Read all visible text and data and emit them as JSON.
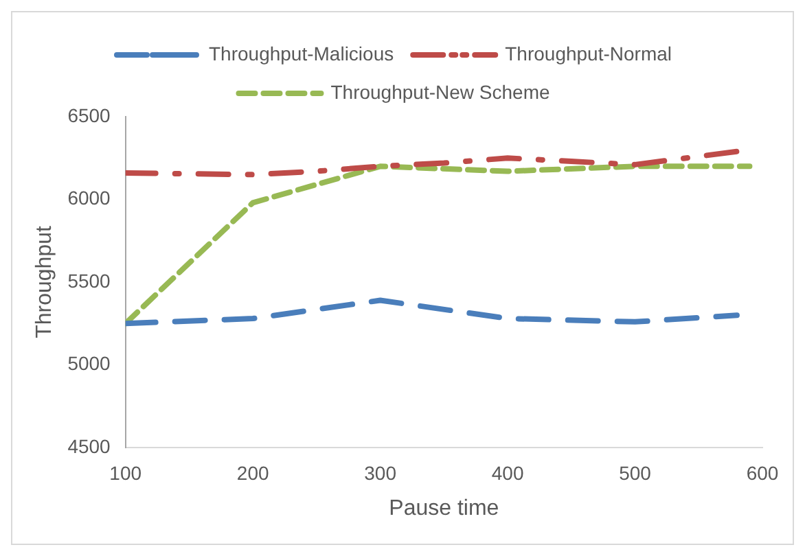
{
  "chart_data": {
    "type": "line",
    "xlabel": "Pause time",
    "ylabel": "Throughput",
    "xlim": [
      100,
      600
    ],
    "xticks": [
      100,
      200,
      300,
      400,
      500,
      600
    ],
    "ylim": [
      4500,
      6500
    ],
    "yticks": [
      4500,
      5000,
      5500,
      6000,
      6500
    ],
    "grid": false,
    "legend": "top",
    "marker": "none",
    "series": [
      {
        "name": "Throughput-Malicious",
        "color": "#4a7ebb",
        "line_style": "dashed",
        "x": [
          100,
          200,
          300,
          400,
          500,
          580
        ],
        "values": [
          5250,
          5280,
          5390,
          5280,
          5260,
          5300
        ]
      },
      {
        "name": "Throughput-Normal",
        "color": "#be4b48",
        "line_style": "dashdot",
        "x": [
          100,
          200,
          250,
          300,
          350,
          400,
          450,
          500,
          550,
          580
        ],
        "values": [
          6160,
          6150,
          6170,
          6200,
          6220,
          6250,
          6230,
          6210,
          6260,
          6290
        ]
      },
      {
        "name": "Throughput-New Scheme",
        "color": "#98b954",
        "line_style": "dotted",
        "x": [
          100,
          200,
          300,
          400,
          500,
          590
        ],
        "values": [
          5250,
          5980,
          6200,
          6170,
          6200,
          6200
        ]
      }
    ]
  }
}
